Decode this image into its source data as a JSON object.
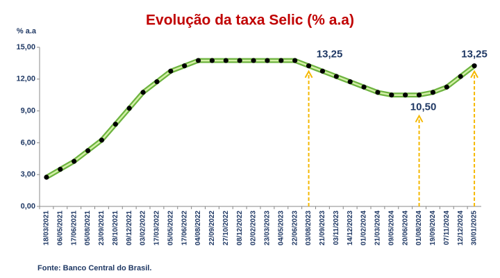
{
  "chart_data": {
    "type": "line",
    "title": "Evolução da taxa Selic (% a.a)",
    "y_label": "% a.a",
    "source": "Fonte: Banco Central do Brasil.",
    "categories": [
      "18/03/2021",
      "06/05/2021",
      "17/06/2021",
      "05/08/2021",
      "23/09/2021",
      "28/10/2021",
      "09/12/2021",
      "03/02/2022",
      "17/03/2022",
      "05/05/2022",
      "17/06/2022",
      "04/08/2022",
      "22/09/2022",
      "27/10/2022",
      "08/12/2022",
      "02/02/2023",
      "23/03/2023",
      "04/05/2023",
      "22/06/2023",
      "03/08/2023",
      "21/09/2023",
      "03/11/2023",
      "14/12/2023",
      "01/02/2024",
      "21/03/2024",
      "09/05/2024",
      "20/06/2024",
      "01/08/2024",
      "19/09/2024",
      "07/11/2024",
      "12/12/2024",
      "30/01/2025"
    ],
    "values": [
      2.75,
      3.5,
      4.25,
      5.25,
      6.25,
      7.75,
      9.25,
      10.75,
      11.75,
      12.75,
      13.25,
      13.75,
      13.75,
      13.75,
      13.75,
      13.75,
      13.75,
      13.75,
      13.75,
      13.25,
      12.75,
      12.25,
      11.75,
      11.25,
      10.75,
      10.5,
      10.5,
      10.5,
      10.75,
      11.25,
      12.25,
      13.25
    ],
    "value_labels": [
      null,
      null,
      null,
      null,
      null,
      null,
      null,
      null,
      null,
      null,
      null,
      null,
      null,
      null,
      null,
      null,
      null,
      null,
      null,
      "13,25",
      null,
      null,
      null,
      null,
      null,
      null,
      null,
      "10,50",
      null,
      null,
      null,
      "13,25"
    ],
    "color": "#6db33f",
    "marker_color": "#000000",
    "arrow_color": "#f5b800",
    "ylim": [
      0,
      15
    ],
    "yticks": [
      {
        "value": 0,
        "label": "0,00"
      },
      {
        "value": 3,
        "label": "3,00"
      },
      {
        "value": 6,
        "label": "6,00"
      },
      {
        "value": 9,
        "label": "9,00"
      },
      {
        "value": 12,
        "label": "12,00"
      },
      {
        "value": 15,
        "label": "15,00"
      }
    ]
  }
}
